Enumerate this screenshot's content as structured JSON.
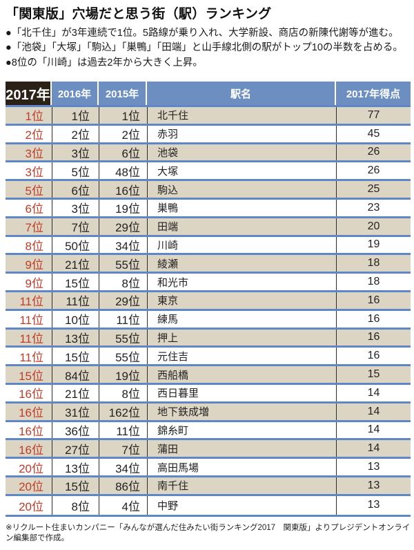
{
  "title": "「関東版」穴場だと思う街（駅）ランキング",
  "bullets": [
    "●「北千住」が3年連続で1位。5路線が乗り入れ、大学新設、商店の新陳代謝等が進む。",
    "●「池袋」「大塚」「駒込」「巣鴨」「田端」と山手線北側の駅がトップ10の半数を占める。",
    "●8位の「川崎」は過去2年から大きく上昇。"
  ],
  "chart_data": {
    "type": "table",
    "title": "「関東版」穴場だと思う街（駅）ランキング",
    "columns": [
      "2017年",
      "2016年",
      "2015年",
      "駅名",
      "2017年得点"
    ],
    "rows": [
      [
        "1位",
        "1位",
        "1位",
        "北千住",
        77
      ],
      [
        "2位",
        "2位",
        "2位",
        "赤羽",
        45
      ],
      [
        "3位",
        "3位",
        "6位",
        "池袋",
        26
      ],
      [
        "3位",
        "5位",
        "48位",
        "大塚",
        26
      ],
      [
        "5位",
        "6位",
        "16位",
        "駒込",
        25
      ],
      [
        "6位",
        "3位",
        "19位",
        "巣鴨",
        23
      ],
      [
        "7位",
        "7位",
        "29位",
        "田端",
        20
      ],
      [
        "8位",
        "50位",
        "34位",
        "川崎",
        19
      ],
      [
        "9位",
        "21位",
        "55位",
        "綾瀬",
        18
      ],
      [
        "9位",
        "15位",
        "8位",
        "和光市",
        18
      ],
      [
        "11位",
        "11位",
        "29位",
        "東京",
        16
      ],
      [
        "11位",
        "10位",
        "11位",
        "練馬",
        16
      ],
      [
        "11位",
        "13位",
        "55位",
        "押上",
        16
      ],
      [
        "11位",
        "15位",
        "55位",
        "元住吉",
        16
      ],
      [
        "15位",
        "84位",
        "19位",
        "西船橋",
        15
      ],
      [
        "16位",
        "21位",
        "8位",
        "西日暮里",
        14
      ],
      [
        "16位",
        "31位",
        "162位",
        "地下鉄成増",
        14
      ],
      [
        "16位",
        "36位",
        "11位",
        "錦糸町",
        14
      ],
      [
        "16位",
        "27位",
        "7位",
        "蒲田",
        14
      ],
      [
        "20位",
        "13位",
        "34位",
        "高田馬場",
        13
      ],
      [
        "20位",
        "15位",
        "86位",
        "南千住",
        13
      ],
      [
        "20位",
        "8位",
        "4位",
        "中野",
        13
      ]
    ]
  },
  "footnote": "※リクルート住まいカンパニー「みんなが選んだ住みたい街ランキング2017　関東版」よりプレジデントオンライン編集部で作成。",
  "colors": {
    "header_blue": "#6d8ec0",
    "header_dark": "#2b2217",
    "separator_blue": "#5d87c6",
    "row_beige": "#ddd5c3",
    "rank_red": "#bf3b27"
  }
}
